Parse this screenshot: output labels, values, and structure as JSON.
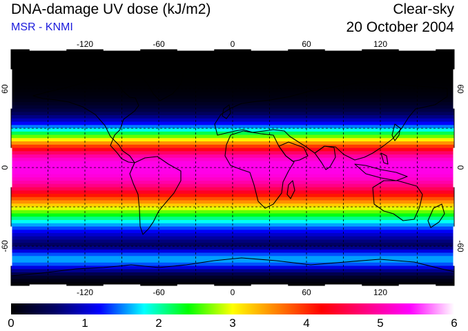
{
  "header": {
    "title": "DNA-damage UV dose (kJ/m2)",
    "credit": "MSR - KNMI",
    "sky_condition": "Clear-sky",
    "date": "20 October 2004"
  },
  "colors": {
    "credit": "#1a1adc",
    "scale": [
      "#000000",
      "#000066",
      "#0000ff",
      "#00ffff",
      "#00ff00",
      "#ffff00",
      "#ff8000",
      "#ff0000",
      "#ff0080",
      "#ff00ff",
      "#ffffff"
    ]
  },
  "map": {
    "projection": "equirectangular",
    "lon_range": [
      -180,
      180
    ],
    "lat_range": [
      -90,
      90
    ],
    "gridlines": "dashed",
    "lon_ticks": [
      {
        "value": -120,
        "label": "-120"
      },
      {
        "value": -60,
        "label": "-60"
      },
      {
        "value": 0,
        "label": "0"
      },
      {
        "value": 60,
        "label": "60"
      },
      {
        "value": 120,
        "label": "120"
      }
    ],
    "lat_ticks": [
      {
        "value": 60,
        "label": "60"
      },
      {
        "value": 0,
        "label": "0"
      },
      {
        "value": -60,
        "label": "-60"
      }
    ]
  },
  "colorbar": {
    "range": [
      0,
      6
    ],
    "labels": [
      {
        "value": 0,
        "label": "0"
      },
      {
        "value": 1,
        "label": "1"
      },
      {
        "value": 2,
        "label": "2"
      },
      {
        "value": 3,
        "label": "3"
      },
      {
        "value": 4,
        "label": "4"
      },
      {
        "value": 5,
        "label": "5"
      },
      {
        "value": 6,
        "label": "6"
      }
    ]
  }
}
